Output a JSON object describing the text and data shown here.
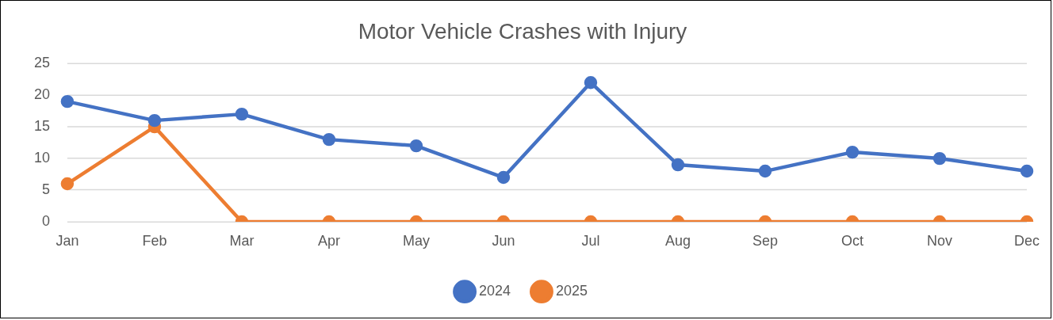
{
  "chart_data": {
    "type": "line",
    "title": "Motor Vehicle Crashes with Injury",
    "categories": [
      "Jan",
      "Feb",
      "Mar",
      "Apr",
      "May",
      "Jun",
      "Jul",
      "Aug",
      "Sep",
      "Oct",
      "Nov",
      "Dec"
    ],
    "series": [
      {
        "name": "2024",
        "color": "#4472c4",
        "values": [
          19,
          16,
          17,
          13,
          12,
          7,
          22,
          9,
          8,
          11,
          10,
          8
        ]
      },
      {
        "name": "2025",
        "color": "#ed7d31",
        "values": [
          6,
          15,
          0,
          0,
          0,
          0,
          0,
          0,
          0,
          0,
          0,
          0
        ]
      }
    ],
    "ylim": [
      0,
      25
    ],
    "yticks": [
      0,
      5,
      10,
      15,
      20,
      25
    ],
    "grid": "y",
    "legend": "bottom",
    "marker": "circle",
    "line_style": "solid"
  }
}
